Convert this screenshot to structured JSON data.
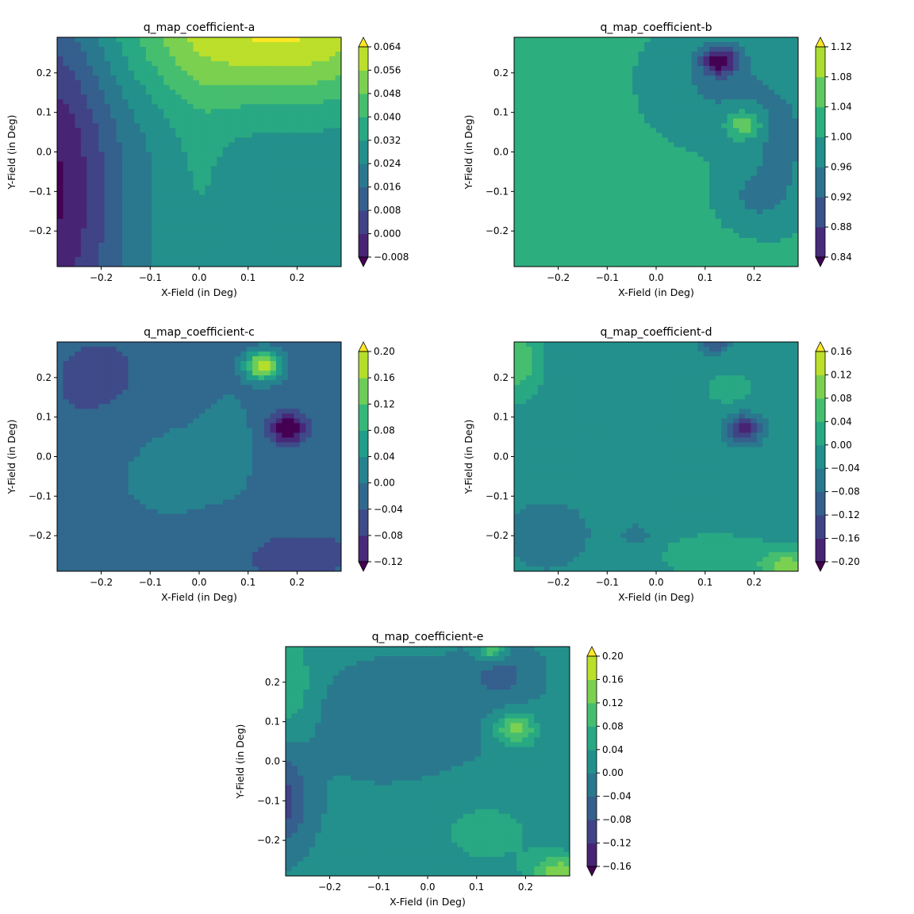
{
  "chart_data": [
    {
      "type": "heatmap",
      "title": "q_map_coefficient-a",
      "xlabel": "X-Field (in Deg)",
      "ylabel": "Y-Field (in Deg)",
      "xlim": [
        -0.29,
        0.29
      ],
      "ylim": [
        -0.29,
        0.29
      ],
      "xticks": [
        -0.2,
        -0.1,
        0.0,
        0.1,
        0.2
      ],
      "xtick_labels": [
        "−0.2",
        "−0.1",
        "0.0",
        "0.1",
        "0.2"
      ],
      "yticks": [
        -0.2,
        -0.1,
        0.0,
        0.1,
        0.2
      ],
      "ytick_labels": [
        "−0.2",
        "−0.1",
        "0.0",
        "0.1",
        "0.2"
      ],
      "colorbar_levels": [
        -0.008,
        0.0,
        0.008,
        0.016,
        0.024,
        0.032,
        0.04,
        0.048,
        0.056,
        0.064
      ],
      "colorbar_labels": [
        "−0.008",
        "0.000",
        "0.008",
        "0.016",
        "0.024",
        "0.032",
        "0.040",
        "0.048",
        "0.056",
        "0.064"
      ],
      "colorbar_extend": "both",
      "base_value": 0.026,
      "features": [
        {
          "x": -0.31,
          "y": -0.09,
          "amp": -0.036,
          "sx": 0.1,
          "sy": 0.35
        },
        {
          "x": 0.16,
          "y": 0.32,
          "amp": 0.04,
          "sx": 0.22,
          "sy": 0.14
        },
        {
          "x": 0.0,
          "y": -0.1,
          "amp": 0.006,
          "sx": 0.05,
          "sy": 0.3
        }
      ]
    },
    {
      "type": "heatmap",
      "title": "q_map_coefficient-b",
      "xlabel": "X-Field (in Deg)",
      "ylabel": "Y-Field (in Deg)",
      "xlim": [
        -0.29,
        0.29
      ],
      "ylim": [
        -0.29,
        0.29
      ],
      "xticks": [
        -0.2,
        -0.1,
        0.0,
        0.1,
        0.2
      ],
      "xtick_labels": [
        "−0.2",
        "−0.1",
        "0.0",
        "0.1",
        "0.2"
      ],
      "yticks": [
        -0.2,
        -0.1,
        0.0,
        0.1,
        0.2
      ],
      "ytick_labels": [
        "−0.2",
        "−0.1",
        "0.0",
        "0.1",
        "0.2"
      ],
      "colorbar_levels": [
        0.84,
        0.88,
        0.92,
        0.96,
        1.0,
        1.04,
        1.08,
        1.12
      ],
      "colorbar_labels": [
        "0.84",
        "0.88",
        "0.92",
        "0.96",
        "1.00",
        "1.04",
        "1.08",
        "1.12"
      ],
      "colorbar_extend": "both",
      "base_value": 1.01,
      "features": [
        {
          "x": 0.13,
          "y": 0.23,
          "amp": -0.16,
          "sx": 0.025,
          "sy": 0.025
        },
        {
          "x": 0.18,
          "y": 0.07,
          "amp": 0.1,
          "sx": 0.025,
          "sy": 0.025
        },
        {
          "x": 0.12,
          "y": 0.18,
          "amp": -0.055,
          "sx": 0.09,
          "sy": 0.1
        },
        {
          "x": 0.26,
          "y": 0.02,
          "amp": -0.055,
          "sx": 0.06,
          "sy": 0.12
        },
        {
          "x": 0.2,
          "y": -0.12,
          "amp": -0.045,
          "sx": 0.05,
          "sy": 0.05
        }
      ]
    },
    {
      "type": "heatmap",
      "title": "q_map_coefficient-c",
      "xlabel": "X-Field (in Deg)",
      "ylabel": "Y-Field (in Deg)",
      "xlim": [
        -0.29,
        0.29
      ],
      "ylim": [
        -0.29,
        0.29
      ],
      "xticks": [
        -0.2,
        -0.1,
        0.0,
        0.1,
        0.2
      ],
      "xtick_labels": [
        "−0.2",
        "−0.1",
        "0.0",
        "0.1",
        "0.2"
      ],
      "yticks": [
        -0.2,
        -0.1,
        0.0,
        0.1,
        0.2
      ],
      "ytick_labels": [
        "−0.2",
        "−0.1",
        "0.0",
        "0.1",
        "0.2"
      ],
      "colorbar_levels": [
        -0.12,
        -0.08,
        -0.04,
        0.0,
        0.04,
        0.08,
        0.12,
        0.16,
        0.2
      ],
      "colorbar_labels": [
        "−0.12",
        "−0.08",
        "−0.04",
        "0.00",
        "0.04",
        "0.08",
        "0.12",
        "0.16",
        "0.20"
      ],
      "colorbar_extend": "both",
      "base_value": -0.02,
      "features": [
        {
          "x": 0.13,
          "y": 0.23,
          "amp": 0.22,
          "sx": 0.025,
          "sy": 0.025
        },
        {
          "x": 0.18,
          "y": 0.07,
          "amp": -0.16,
          "sx": 0.025,
          "sy": 0.025
        },
        {
          "x": -0.05,
          "y": -0.02,
          "amp": 0.035,
          "sx": 0.12,
          "sy": 0.12
        },
        {
          "x": 0.06,
          "y": 0.05,
          "amp": 0.03,
          "sx": 0.03,
          "sy": 0.08
        },
        {
          "x": -0.2,
          "y": 0.18,
          "amp": -0.03,
          "sx": 0.1,
          "sy": 0.12
        },
        {
          "x": 0.2,
          "y": -0.25,
          "amp": -0.03,
          "sx": 0.12,
          "sy": 0.06
        }
      ]
    },
    {
      "type": "heatmap",
      "title": "q_map_coefficient-d",
      "xlabel": "X-Field (in Deg)",
      "ylabel": "Y-Field (in Deg)",
      "xlim": [
        -0.29,
        0.29
      ],
      "ylim": [
        -0.29,
        0.29
      ],
      "xticks": [
        -0.2,
        -0.1,
        0.0,
        0.1,
        0.2
      ],
      "xtick_labels": [
        "−0.2",
        "−0.1",
        "0.0",
        "0.1",
        "0.2"
      ],
      "yticks": [
        -0.2,
        -0.1,
        0.0,
        0.1,
        0.2
      ],
      "ytick_labels": [
        "−0.2",
        "−0.1",
        "0.0",
        "0.1",
        "0.2"
      ],
      "colorbar_levels": [
        -0.2,
        -0.16,
        -0.12,
        -0.08,
        -0.04,
        0.0,
        0.04,
        0.08,
        0.12,
        0.16
      ],
      "colorbar_labels": [
        "−0.20",
        "−0.16",
        "−0.12",
        "−0.08",
        "−0.04",
        "0.00",
        "0.04",
        "0.08",
        "0.12",
        "0.16"
      ],
      "colorbar_extend": "both",
      "base_value": -0.02,
      "features": [
        {
          "x": 0.18,
          "y": 0.07,
          "amp": -0.16,
          "sx": 0.025,
          "sy": 0.025
        },
        {
          "x": -0.28,
          "y": 0.24,
          "amp": 0.09,
          "sx": 0.03,
          "sy": 0.06
        },
        {
          "x": 0.27,
          "y": -0.28,
          "amp": 0.12,
          "sx": 0.04,
          "sy": 0.03
        },
        {
          "x": 0.12,
          "y": -0.25,
          "amp": 0.035,
          "sx": 0.1,
          "sy": 0.05
        },
        {
          "x": -0.22,
          "y": -0.2,
          "amp": -0.035,
          "sx": 0.08,
          "sy": 0.08
        },
        {
          "x": 0.12,
          "y": 0.29,
          "amp": -0.1,
          "sx": 0.02,
          "sy": 0.02
        },
        {
          "x": -0.04,
          "y": -0.2,
          "amp": -0.05,
          "sx": 0.02,
          "sy": 0.02
        },
        {
          "x": 0.15,
          "y": 0.17,
          "amp": 0.03,
          "sx": 0.05,
          "sy": 0.04
        }
      ]
    },
    {
      "type": "heatmap",
      "title": "q_map_coefficient-e",
      "xlabel": "X-Field (in Deg)",
      "ylabel": "Y-Field (in Deg)",
      "xlim": [
        -0.29,
        0.29
      ],
      "ylim": [
        -0.29,
        0.29
      ],
      "xticks": [
        -0.2,
        -0.1,
        0.0,
        0.1,
        0.2
      ],
      "xtick_labels": [
        "−0.2",
        "−0.1",
        "0.0",
        "0.1",
        "0.2"
      ],
      "yticks": [
        -0.2,
        -0.1,
        0.0,
        0.1,
        0.2
      ],
      "ytick_labels": [
        "−0.2",
        "−0.1",
        "0.0",
        "0.1",
        "0.2"
      ],
      "colorbar_levels": [
        -0.16,
        -0.12,
        -0.08,
        -0.04,
        0.0,
        0.04,
        0.08,
        0.12,
        0.16,
        0.2
      ],
      "colorbar_labels": [
        "−0.16",
        "−0.12",
        "−0.08",
        "−0.04",
        "0.00",
        "0.04",
        "0.08",
        "0.12",
        "0.16",
        "0.20"
      ],
      "colorbar_extend": "both",
      "base_value": 0.01,
      "features": [
        {
          "x": 0.18,
          "y": 0.08,
          "amp": 0.13,
          "sx": 0.03,
          "sy": 0.03
        },
        {
          "x": -0.3,
          "y": -0.1,
          "amp": -0.11,
          "sx": 0.04,
          "sy": 0.08
        },
        {
          "x": -0.28,
          "y": 0.2,
          "amp": 0.07,
          "sx": 0.03,
          "sy": 0.08
        },
        {
          "x": 0.27,
          "y": -0.28,
          "amp": 0.13,
          "sx": 0.04,
          "sy": 0.03
        },
        {
          "x": 0.12,
          "y": -0.18,
          "amp": 0.04,
          "sx": 0.1,
          "sy": 0.08
        },
        {
          "x": -0.05,
          "y": 0.1,
          "amp": -0.04,
          "sx": 0.12,
          "sy": 0.1
        },
        {
          "x": 0.15,
          "y": 0.22,
          "amp": -0.06,
          "sx": 0.05,
          "sy": 0.05
        },
        {
          "x": 0.13,
          "y": 0.28,
          "amp": 0.12,
          "sx": 0.02,
          "sy": 0.02
        }
      ]
    }
  ]
}
